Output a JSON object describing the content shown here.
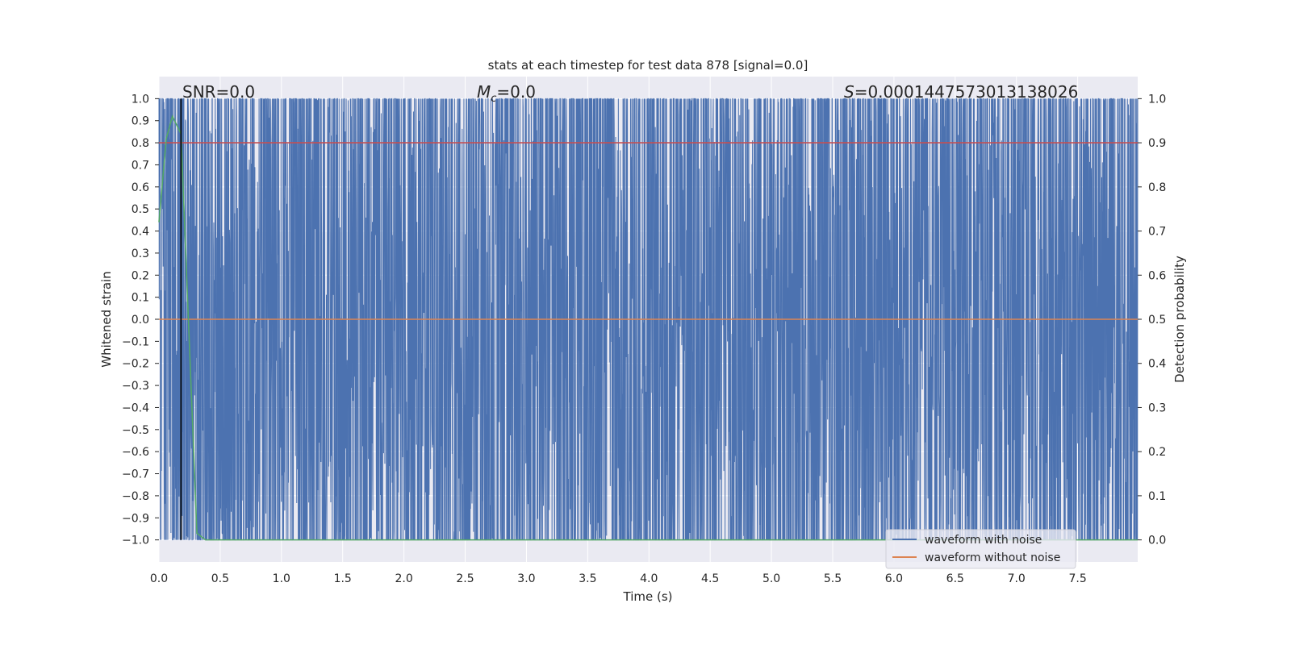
{
  "chart_data": {
    "type": "line",
    "title": "stats at each timestep for test data 878 [signal=0.0]",
    "xlabel": "Time (s)",
    "ylabel": "Whitened strain",
    "ylabel_right": "Detection probability",
    "xlim": [
      0.0,
      7.99
    ],
    "ylim": [
      -1.1,
      1.1
    ],
    "ylim_right": [
      -0.05,
      1.05
    ],
    "xticks": [
      "0.0",
      "0.5",
      "1.0",
      "1.5",
      "2.0",
      "2.5",
      "3.0",
      "3.5",
      "4.0",
      "4.5",
      "5.0",
      "5.5",
      "6.0",
      "6.5",
      "7.0",
      "7.5"
    ],
    "yticks": [
      "1.0",
      "0.9",
      "0.8",
      "0.7",
      "0.6",
      "0.5",
      "0.4",
      "0.3",
      "0.2",
      "0.1",
      "0.0",
      "-0.1",
      "-0.2",
      "-0.3",
      "-0.4",
      "-0.5",
      "-0.6",
      "-0.7",
      "-0.8",
      "-0.9",
      "-1.0"
    ],
    "yticks_right": [
      "1.0",
      "0.9",
      "0.8",
      "0.7",
      "0.6",
      "0.5",
      "0.4",
      "0.3",
      "0.2",
      "0.1",
      "0.0"
    ],
    "grid": true,
    "annotations": {
      "snr": "SNR=0.0",
      "mc_symbol": "M",
      "mc_sub": "c",
      "mc_value": "=0.0",
      "s_symbol": "S",
      "s_value": "=0.0001447573013138026"
    },
    "series": [
      {
        "name": "waveform with noise",
        "color": "#4c72b0",
        "axis": "left",
        "generator": {
          "kind": "clipped_gaussian_noise",
          "samples": 4000,
          "sigma": 1.6,
          "clip": [
            -1.0,
            1.0
          ],
          "seed": 878
        }
      },
      {
        "name": "waveform without noise",
        "color": "#dd8452",
        "axis": "left",
        "x": [
          0.0,
          7.99
        ],
        "y": [
          0.0,
          0.0
        ]
      },
      {
        "name": "threshold",
        "color": "#c44e52",
        "axis": "right",
        "x": [
          0.0,
          7.99
        ],
        "y": [
          0.9,
          0.9
        ]
      },
      {
        "name": "detection probability",
        "color": "#55a868",
        "axis": "right",
        "x": [
          0.0,
          0.06,
          0.11,
          0.18,
          0.31,
          0.38,
          7.99
        ],
        "y": [
          0.72,
          0.91,
          0.96,
          0.92,
          0.015,
          0.0,
          0.0
        ]
      },
      {
        "name": "marker",
        "color": "#000000",
        "axis": "left",
        "x": [
          0.18,
          0.18
        ],
        "y": [
          -1.0,
          1.0
        ]
      }
    ],
    "legend": {
      "placement": "lower-right",
      "entries": [
        "waveform with noise",
        "waveform without noise"
      ]
    }
  }
}
